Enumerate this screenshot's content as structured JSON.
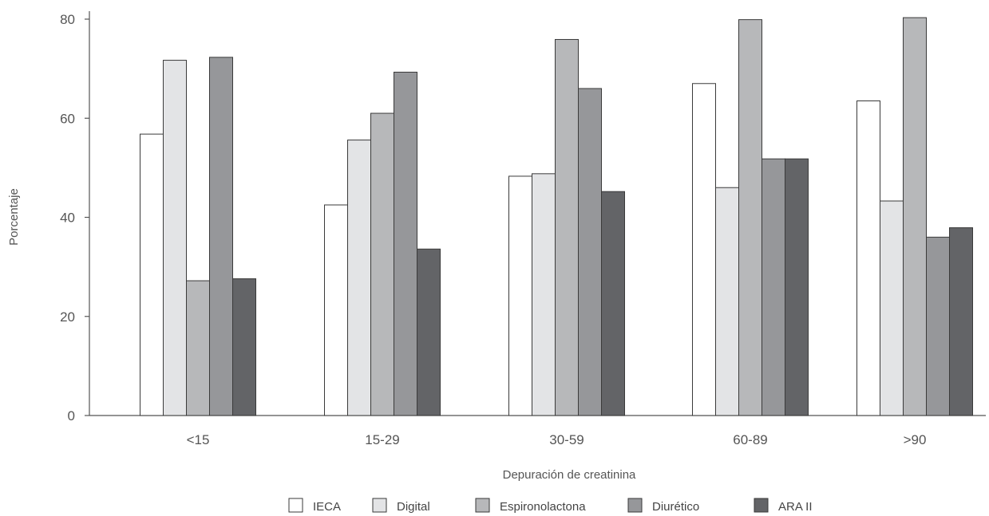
{
  "chart_data": {
    "type": "bar",
    "title": "",
    "xlabel": "Depuración de creatinina",
    "ylabel": "Porcentaje",
    "ylim": [
      0,
      80
    ],
    "yticks": [
      0,
      20,
      40,
      60,
      80
    ],
    "grid": false,
    "legend_position": "bottom",
    "categories": [
      "<15",
      "15-29",
      "30-59",
      "60-89",
      ">90"
    ],
    "series": [
      {
        "name": "IECA",
        "color": "#ffffff",
        "values": [
          56.8,
          42.5,
          48.3,
          67.0,
          63.5
        ]
      },
      {
        "name": "Digital",
        "color": "#e3e4e6",
        "values": [
          71.7,
          55.6,
          48.8,
          46.0,
          43.3
        ]
      },
      {
        "name": "Espironolactona",
        "color": "#b7b8ba",
        "values": [
          27.2,
          61.0,
          75.9,
          79.9,
          80.3
        ]
      },
      {
        "name": "Diurético",
        "color": "#96979a",
        "values": [
          72.3,
          69.3,
          66.0,
          51.8,
          36.0
        ]
      },
      {
        "name": "ARA II",
        "color": "#636467",
        "values": [
          27.6,
          33.6,
          45.2,
          51.8,
          37.9
        ]
      }
    ]
  }
}
